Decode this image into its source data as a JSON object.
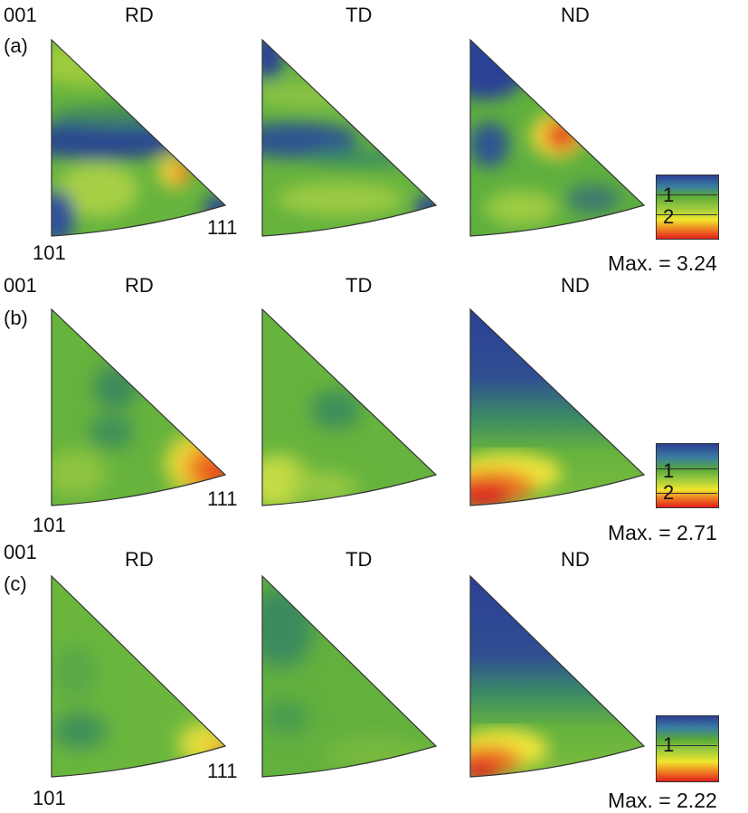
{
  "labels": {
    "pole_001": "001",
    "pole_101": "101",
    "pole_111": "111",
    "rd": "RD",
    "td": "TD",
    "nd": "ND"
  },
  "colors": {
    "blue": "#2c3f95",
    "green": "#59a93a",
    "yellow": "#f0e62c",
    "orange": "#ef7a22",
    "red": "#e0201c",
    "outline": "#333333"
  },
  "rows": [
    {
      "tag": "(a)",
      "max_text": "Max. = 3.24",
      "legend_ticks": [
        "1",
        "2"
      ],
      "maps": [
        {
          "name": "RD",
          "dominant": "green",
          "hotspots": [
            "blue band below 001",
            "orange near 111 side",
            "blue at 101 and 111"
          ]
        },
        {
          "name": "TD",
          "dominant": "green",
          "hotspots": [
            "blue arc near 001",
            "blue at 111"
          ]
        },
        {
          "name": "ND",
          "dominant": "green",
          "hotspots": [
            "blue at 001",
            "red near middle edge"
          ]
        }
      ]
    },
    {
      "tag": "(b)",
      "max_text": "Max. = 2.71",
      "legend_ticks": [
        "1",
        "2"
      ],
      "maps": [
        {
          "name": "RD",
          "dominant": "green",
          "hotspots": [
            "red-orange at 111"
          ]
        },
        {
          "name": "TD",
          "dominant": "green",
          "hotspots": [
            "yellow-green at 101"
          ]
        },
        {
          "name": "ND",
          "dominant": "blue",
          "hotspots": [
            "red at 101"
          ]
        }
      ]
    },
    {
      "tag": "(c)",
      "max_text": "Max. = 2.22",
      "legend_ticks": [
        "1"
      ],
      "maps": [
        {
          "name": "RD",
          "dominant": "green",
          "hotspots": [
            "yellow-orange at 111"
          ]
        },
        {
          "name": "TD",
          "dominant": "green",
          "hotspots": []
        },
        {
          "name": "ND",
          "dominant": "blue",
          "hotspots": [
            "red at 101"
          ]
        }
      ]
    }
  ]
}
